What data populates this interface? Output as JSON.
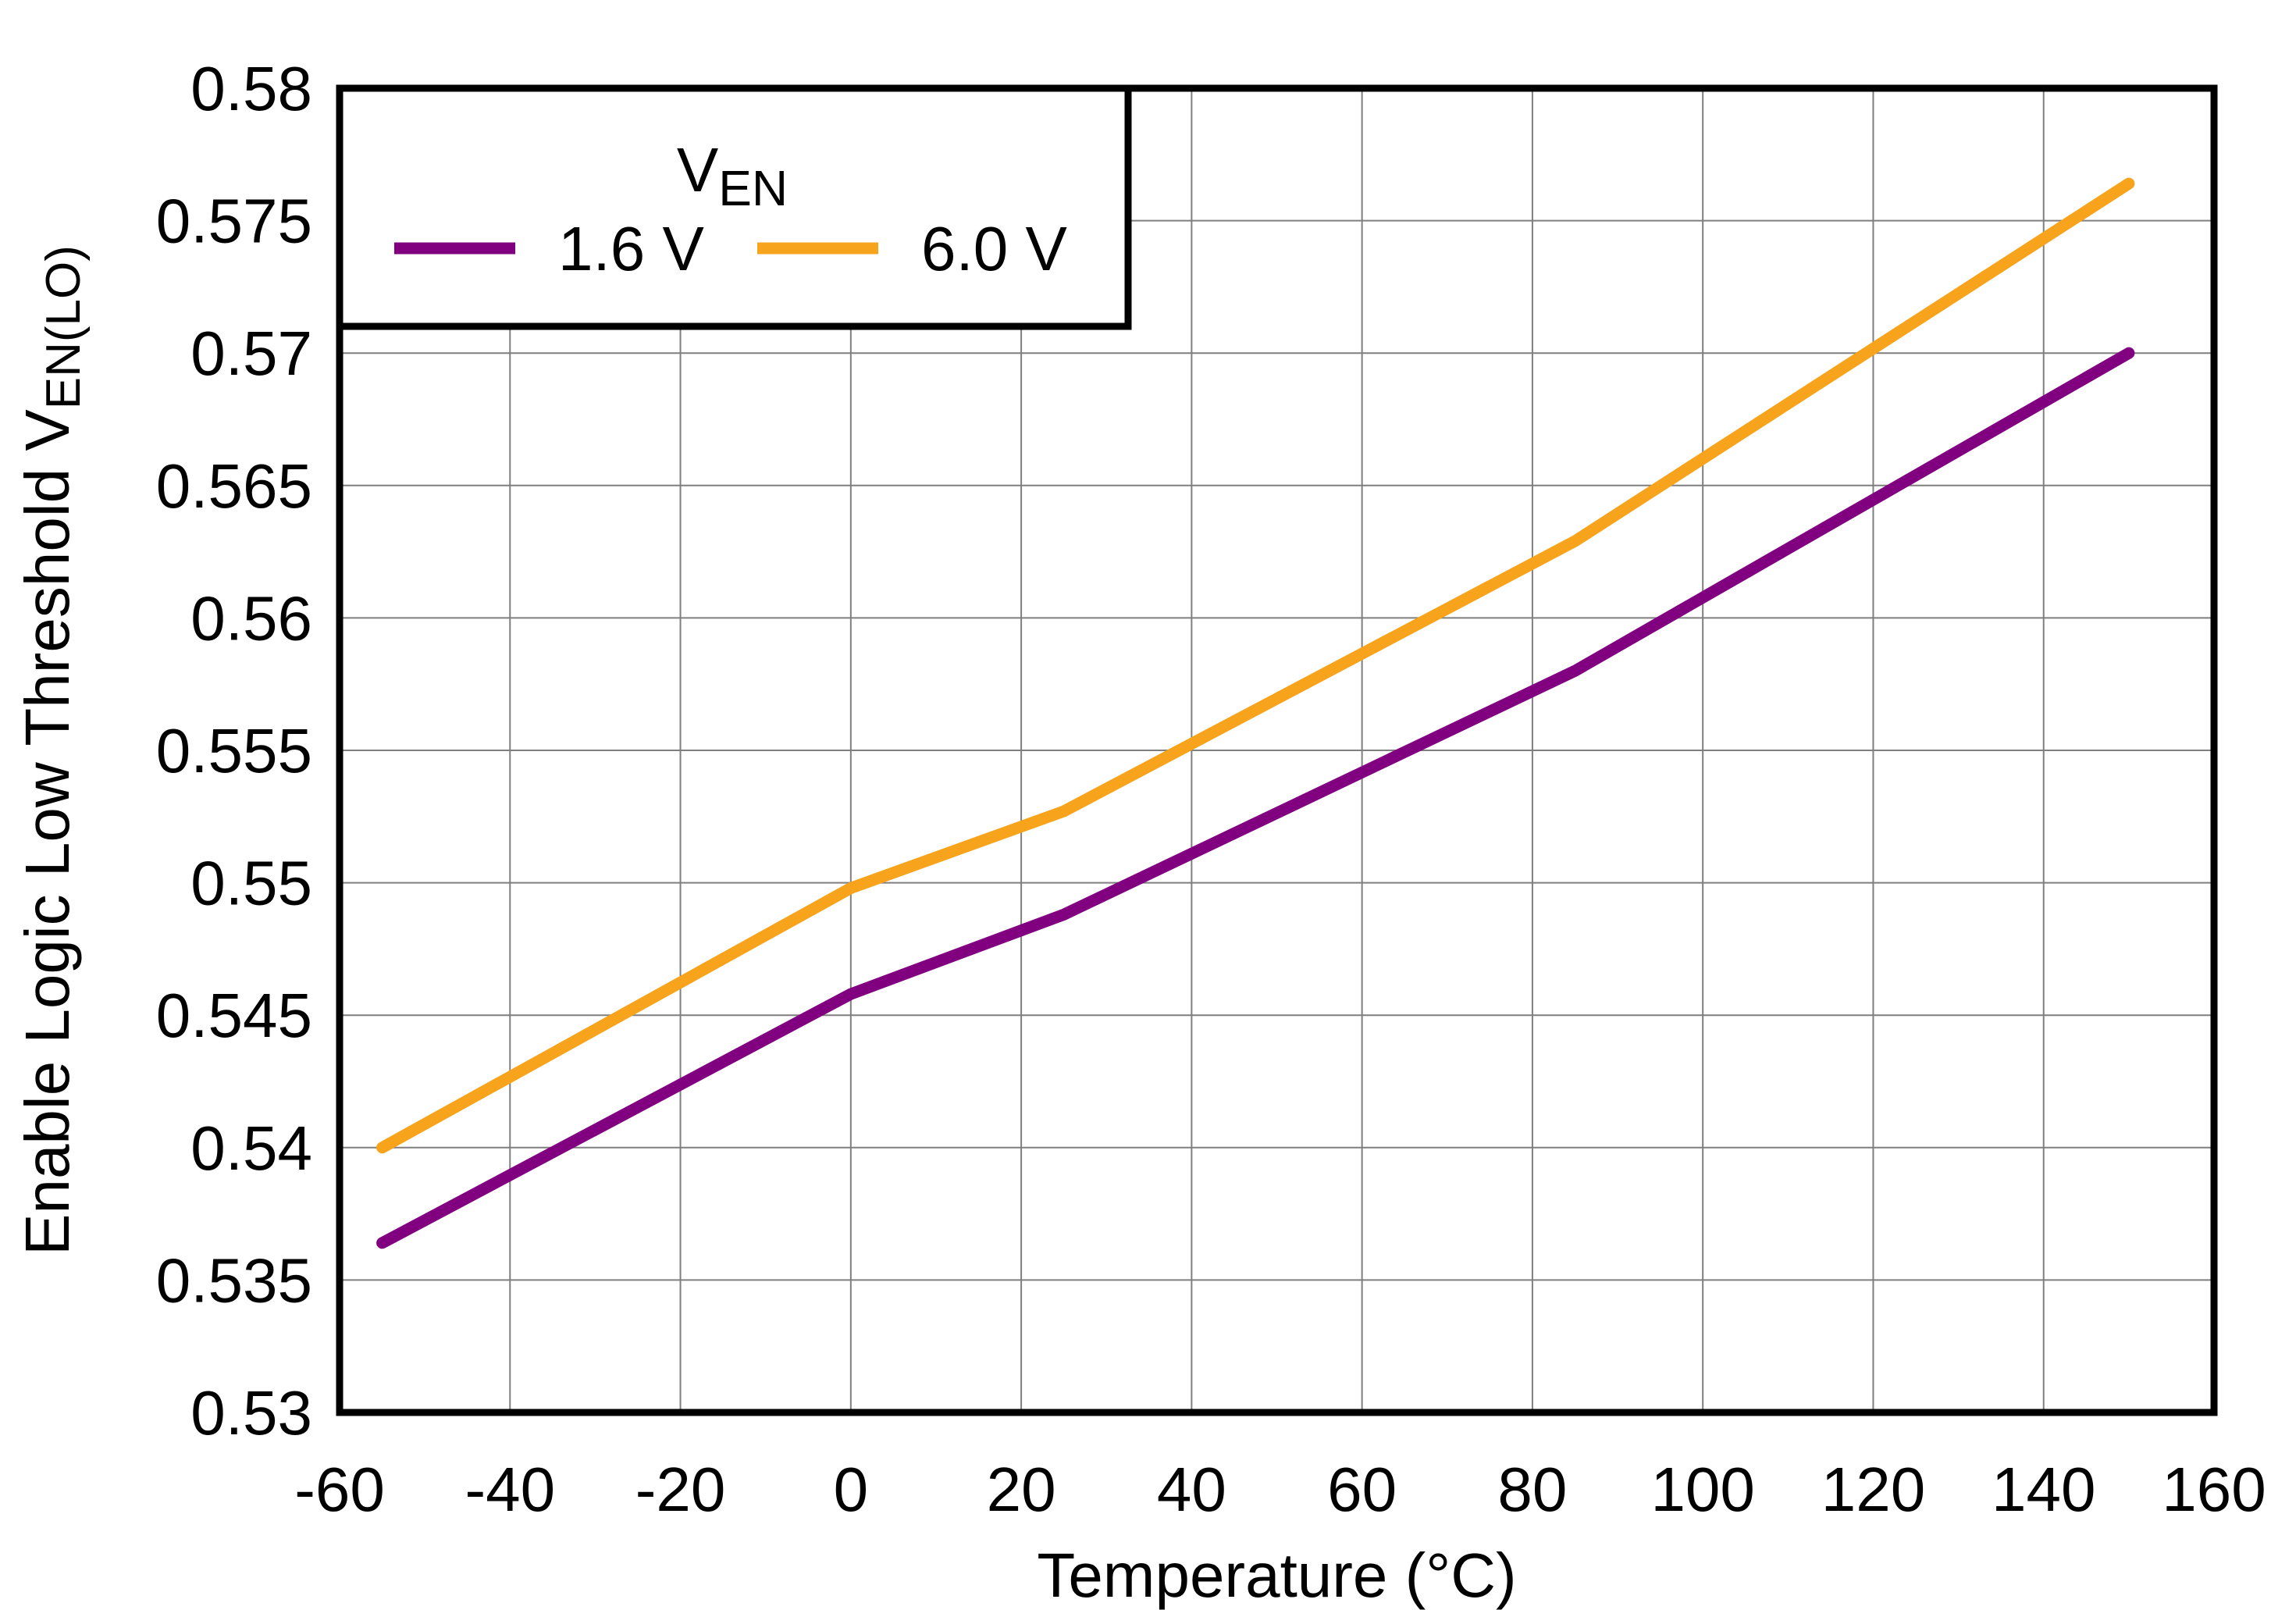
{
  "chart_data": {
    "type": "line",
    "title": "",
    "xlabel": "Temperature (°C)",
    "ylabel": {
      "main": "Enable Logic Low Threshold V",
      "sub": "EN(LO)"
    },
    "xlim": [
      -60,
      160
    ],
    "ylim": [
      0.53,
      0.58
    ],
    "xticks": [
      -60,
      -40,
      -20,
      0,
      20,
      40,
      60,
      80,
      100,
      120,
      140,
      160
    ],
    "xtick_labels": [
      "-60",
      "-40",
      "-20",
      "0",
      "20",
      "40",
      "60",
      "80",
      "100",
      "120",
      "140",
      "160"
    ],
    "yticks": [
      0.53,
      0.535,
      0.54,
      0.545,
      0.55,
      0.555,
      0.56,
      0.565,
      0.57,
      0.575,
      0.58
    ],
    "ytick_labels": [
      "0.53",
      "0.535",
      "0.54",
      "0.545",
      "0.55",
      "0.555",
      "0.56",
      "0.565",
      "0.57",
      "0.575",
      "0.58"
    ],
    "grid": true,
    "legend": {
      "title_main": "V",
      "title_sub": "EN",
      "position": "top-left"
    },
    "series": [
      {
        "name": "1.6 V",
        "color": "#800080",
        "x": [
          -55,
          0,
          25,
          85,
          150
        ],
        "y": [
          0.5364,
          0.5458,
          0.5488,
          0.558,
          0.57
        ]
      },
      {
        "name": "6.0 V",
        "color": "#F7A31C",
        "x": [
          -55,
          0,
          25,
          85,
          150
        ],
        "y": [
          0.54,
          0.5498,
          0.5527,
          0.5629,
          0.5764
        ]
      }
    ]
  }
}
